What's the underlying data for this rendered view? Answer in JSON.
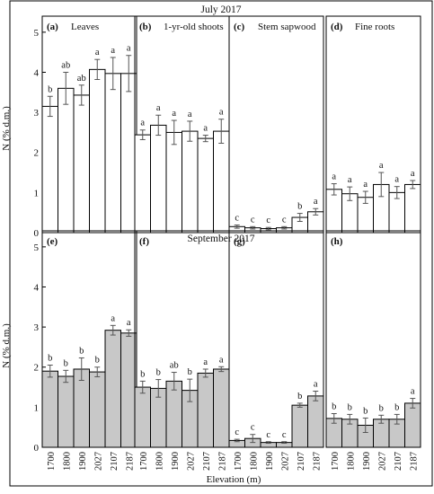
{
  "figure": {
    "row_titles": [
      "July 2017",
      "September 2017"
    ],
    "ylabel": "N (% d.m.)",
    "xlabel": "Elevation (m)",
    "y_ticks": [
      0,
      1,
      2,
      3,
      4,
      5
    ],
    "colors": {
      "july_bar": "#ffffff",
      "sept_bar": "#c8c8c8",
      "stroke": "#000000"
    }
  },
  "chart_data": [
    {
      "type": "bar",
      "panel": "(a)",
      "title": "Leaves",
      "row": 0,
      "col": 0,
      "categories": [
        "1700",
        "1800",
        "1900",
        "2027",
        "2107",
        "2187"
      ],
      "values": [
        3.15,
        3.6,
        3.43,
        4.07,
        3.97,
        3.97
      ],
      "errors": [
        0.25,
        0.4,
        0.25,
        0.25,
        0.4,
        0.45
      ],
      "letters": [
        "b",
        "ab",
        "ab",
        "a",
        "a",
        "a"
      ],
      "ylim": [
        0,
        5.4
      ]
    },
    {
      "type": "bar",
      "panel": "(b)",
      "title": "1-yr-old shoots",
      "row": 0,
      "col": 1,
      "categories": [
        "1700",
        "1800",
        "1900",
        "2027",
        "2107",
        "2187"
      ],
      "values": [
        2.44,
        2.68,
        2.5,
        2.53,
        2.35,
        2.53
      ],
      "errors": [
        0.12,
        0.25,
        0.3,
        0.25,
        0.08,
        0.3
      ],
      "letters": [
        "a",
        "a",
        "a",
        "a",
        "a",
        "a"
      ],
      "ylim": [
        0,
        5.4
      ]
    },
    {
      "type": "bar",
      "panel": "(c)",
      "title": "Stem sapwood",
      "row": 0,
      "col": 2,
      "categories": [
        "1700",
        "1800",
        "1900",
        "2027",
        "2107",
        "2187"
      ],
      "values": [
        0.15,
        0.12,
        0.1,
        0.12,
        0.38,
        0.52
      ],
      "errors": [
        0.04,
        0.03,
        0.03,
        0.03,
        0.1,
        0.08
      ],
      "letters": [
        "c",
        "c",
        "c",
        "c",
        "b",
        "a"
      ],
      "ylim": [
        0,
        5.4
      ]
    },
    {
      "type": "bar",
      "panel": "(d)",
      "title": "Fine roots",
      "row": 0,
      "col": 3,
      "categories": [
        "1700",
        "1800",
        "1900",
        "2027",
        "2107",
        "2187"
      ],
      "values": [
        1.08,
        0.97,
        0.88,
        1.2,
        1.0,
        1.2
      ],
      "errors": [
        0.14,
        0.17,
        0.15,
        0.3,
        0.15,
        0.1
      ],
      "letters": [
        "a",
        "a",
        "a",
        "a",
        "a",
        "a"
      ],
      "ylim": [
        0,
        5.4
      ]
    },
    {
      "type": "bar",
      "panel": "(e)",
      "title": "",
      "row": 1,
      "col": 0,
      "categories": [
        "1700",
        "1800",
        "1900",
        "2027",
        "2107",
        "2187"
      ],
      "values": [
        1.9,
        1.77,
        1.95,
        1.88,
        2.92,
        2.85
      ],
      "errors": [
        0.15,
        0.15,
        0.28,
        0.12,
        0.12,
        0.08
      ],
      "letters": [
        "b",
        "b",
        "b",
        "b",
        "a",
        "a"
      ],
      "ylim": [
        0,
        5.4
      ]
    },
    {
      "type": "bar",
      "panel": "(f)",
      "title": "",
      "row": 1,
      "col": 1,
      "categories": [
        "1700",
        "1800",
        "1900",
        "2027",
        "2107",
        "2187"
      ],
      "values": [
        1.5,
        1.47,
        1.65,
        1.42,
        1.85,
        1.95
      ],
      "errors": [
        0.15,
        0.22,
        0.22,
        0.28,
        0.1,
        0.06
      ],
      "letters": [
        "b",
        "b",
        "ab",
        "b",
        "a",
        "a"
      ],
      "ylim": [
        0,
        5.4
      ]
    },
    {
      "type": "bar",
      "panel": "(g)",
      "title": "",
      "row": 1,
      "col": 2,
      "categories": [
        "1700",
        "1800",
        "1900",
        "2027",
        "2107",
        "2187"
      ],
      "values": [
        0.17,
        0.22,
        0.12,
        0.12,
        1.05,
        1.28
      ],
      "errors": [
        0.03,
        0.1,
        0.02,
        0.02,
        0.05,
        0.12
      ],
      "letters": [
        "c",
        "c",
        "c",
        "c",
        "b",
        "a"
      ],
      "ylim": [
        0,
        5.4
      ]
    },
    {
      "type": "bar",
      "panel": "(h)",
      "title": "",
      "row": 1,
      "col": 3,
      "categories": [
        "1700",
        "1800",
        "1900",
        "2027",
        "2107",
        "2187"
      ],
      "values": [
        0.72,
        0.7,
        0.55,
        0.7,
        0.7,
        1.1
      ],
      "errors": [
        0.12,
        0.12,
        0.18,
        0.1,
        0.12,
        0.12
      ],
      "letters": [
        "b",
        "b",
        "b",
        "b",
        "b",
        "a"
      ],
      "ylim": [
        0,
        5.4
      ]
    }
  ]
}
